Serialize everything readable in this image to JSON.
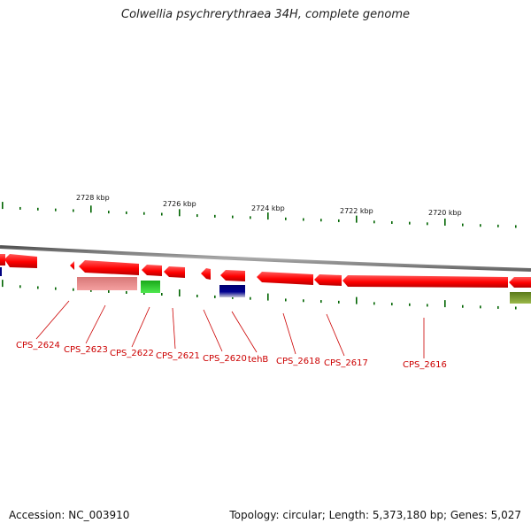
{
  "title": "Colwellia psychrerythraea 34H, complete genome",
  "footer": {
    "accession": "Accession: NC_003910",
    "summary": "Topology: circular; Length: 5,373,180 bp; Genes: 5,027"
  },
  "colors": {
    "gene_red": "#ff0000",
    "gene_pink": "#f08080",
    "gene_green": "#22cc22",
    "gene_navy": "#000080",
    "gene_olive": "#6b8e23",
    "backbone": "#777777",
    "tick": "#006400",
    "label": "#cc0000"
  },
  "scale_labels": [
    "2728 kbp",
    "2726 kbp",
    "2724 kbp",
    "2722 kbp",
    "2720 kbp"
  ],
  "gene_labels": [
    "CPS_2624",
    "CPS_2623",
    "CPS_2622",
    "CPS_2621",
    "CPS_2620",
    "tehB",
    "CPS_2618",
    "CPS_2617",
    "CPS_2616"
  ]
}
